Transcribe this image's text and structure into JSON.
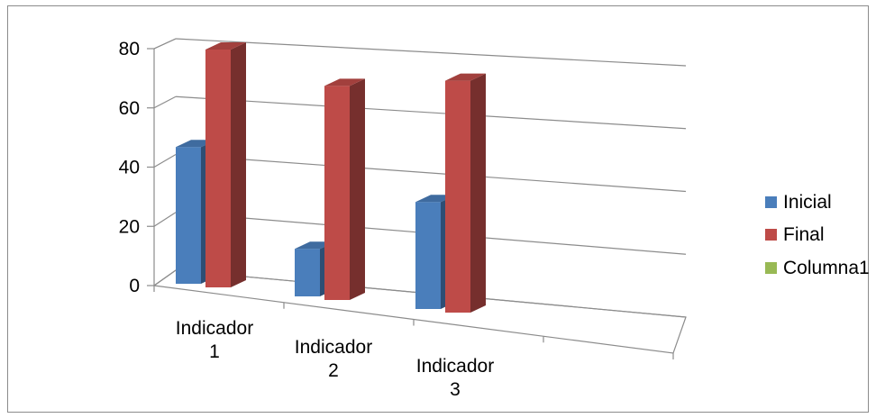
{
  "chart_data": {
    "type": "bar",
    "title": "",
    "xlabel": "",
    "ylabel": "",
    "ylim": [
      0,
      80
    ],
    "yticks": [
      "0",
      "20",
      "40",
      "60",
      "80"
    ],
    "categories": [
      [
        "Indicador",
        "1"
      ],
      [
        "Indicador",
        "2"
      ],
      [
        "Indicador",
        "3"
      ]
    ],
    "series": [
      {
        "name": "Inicial",
        "values": [
          46,
          16,
          36
        ],
        "color": "#4a7ebb"
      },
      {
        "name": "Final",
        "values": [
          80,
          72,
          78
        ],
        "color": "#be4b48"
      },
      {
        "name": "Columna1",
        "values": [
          0,
          0,
          0
        ],
        "color": "#98b954"
      }
    ],
    "legend_position": "right",
    "grid": true,
    "style": "3d-clustered-column"
  }
}
